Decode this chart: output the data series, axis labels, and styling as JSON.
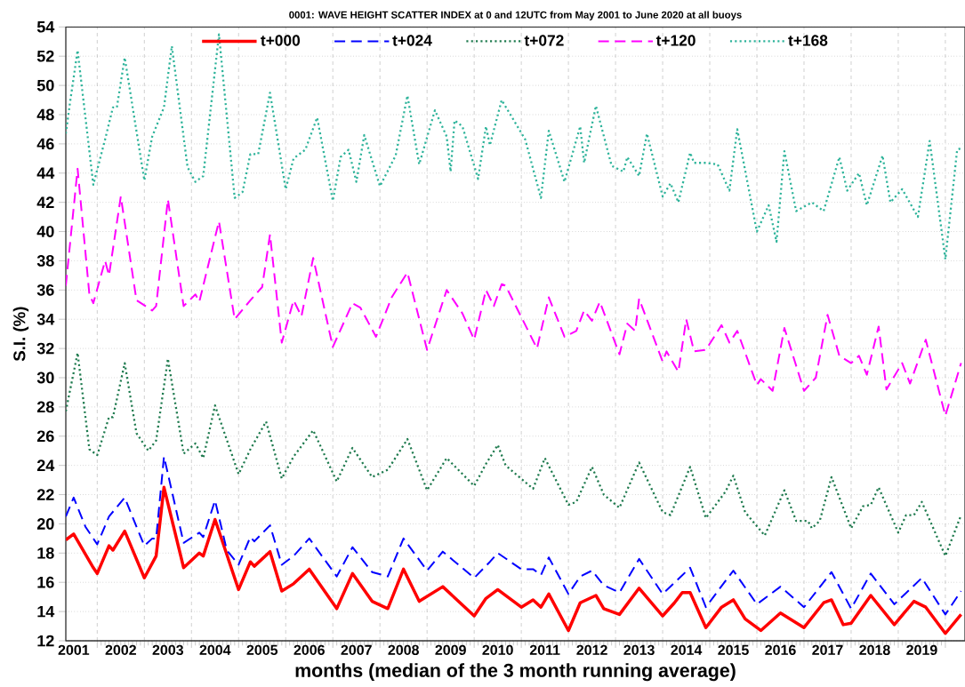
{
  "chart_data": {
    "type": "line",
    "title": "0001: WAVE HEIGHT SCATTER INDEX at 0 and 12UTC from May 2001 to June 2020 at all buoys",
    "xlabel": "months (median of the 3 month running average)",
    "ylabel": "S.I. (%)",
    "xlim": [
      "2001-05",
      "2020-06"
    ],
    "ylim": [
      12,
      54
    ],
    "yticks": [
      12,
      14,
      16,
      18,
      20,
      22,
      24,
      26,
      28,
      30,
      32,
      34,
      36,
      38,
      40,
      42,
      44,
      46,
      48,
      50,
      52,
      54
    ],
    "xticks": [
      {
        "value": "2001-07",
        "label": "2001"
      },
      {
        "value": "2002-07",
        "label": "2002"
      },
      {
        "value": "2003-07",
        "label": "2003"
      },
      {
        "value": "2004-07",
        "label": "2004"
      },
      {
        "value": "2005-07",
        "label": "2005"
      },
      {
        "value": "2006-07",
        "label": "2006"
      },
      {
        "value": "2007-07",
        "label": "2007"
      },
      {
        "value": "2008-07",
        "label": "2008"
      },
      {
        "value": "2009-07",
        "label": "2009"
      },
      {
        "value": "2010-07",
        "label": "2010"
      },
      {
        "value": "2011-07",
        "label": "2011"
      },
      {
        "value": "2012-07",
        "label": "2012"
      },
      {
        "value": "2013-07",
        "label": "2013"
      },
      {
        "value": "2014-07",
        "label": "2014"
      },
      {
        "value": "2015-07",
        "label": "2015"
      },
      {
        "value": "2016-07",
        "label": "2016"
      },
      {
        "value": "2017-07",
        "label": "2017"
      },
      {
        "value": "2018-07",
        "label": "2018"
      },
      {
        "value": "2019-07",
        "label": "2019"
      },
      {
        "value": "2002-01",
        "label": null
      },
      {
        "value": "2003-01",
        "label": null
      },
      {
        "value": "2004-01",
        "label": null
      },
      {
        "value": "2005-01",
        "label": null
      },
      {
        "value": "2006-01",
        "label": null
      },
      {
        "value": "2007-01",
        "label": null
      },
      {
        "value": "2008-01",
        "label": null
      },
      {
        "value": "2009-01",
        "label": null
      },
      {
        "value": "2010-01",
        "label": null
      },
      {
        "value": "2011-01",
        "label": null
      },
      {
        "value": "2012-01",
        "label": null
      },
      {
        "value": "2013-01",
        "label": null
      },
      {
        "value": "2014-01",
        "label": null
      },
      {
        "value": "2015-01",
        "label": null
      },
      {
        "value": "2016-01",
        "label": null
      },
      {
        "value": "2017-01",
        "label": null
      },
      {
        "value": "2018-01",
        "label": null
      },
      {
        "value": "2019-01",
        "label": null
      },
      {
        "value": "2020-01",
        "label": null
      }
    ],
    "grid": true,
    "legend": "top",
    "marker": "none",
    "series": [
      {
        "name": "t+000",
        "color": "#ff0000",
        "line_style": "solid",
        "x": [
          "2001-05",
          "2001-07",
          "2001-12",
          "2002-01",
          "2002-04",
          "2002-05",
          "2002-08",
          "2003-01",
          "2003-04",
          "2003-06",
          "2003-11",
          "2004-03",
          "2004-04",
          "2004-07",
          "2005-01",
          "2005-04",
          "2005-05",
          "2005-09",
          "2005-12",
          "2006-03",
          "2006-07",
          "2007-02",
          "2007-06",
          "2007-11",
          "2008-03",
          "2008-07",
          "2008-11",
          "2009-05",
          "2010-01",
          "2010-04",
          "2010-07",
          "2011-01",
          "2011-04",
          "2011-06",
          "2011-08",
          "2012-01",
          "2012-04",
          "2012-08",
          "2012-10",
          "2013-02",
          "2013-07",
          "2014-01",
          "2014-04",
          "2014-06",
          "2014-08",
          "2014-12",
          "2015-04",
          "2015-07",
          "2015-10",
          "2016-02",
          "2016-07",
          "2017-01",
          "2017-06",
          "2017-08",
          "2017-11",
          "2018-01",
          "2018-06",
          "2018-12",
          "2019-05",
          "2019-08",
          "2020-01",
          "2020-05"
        ],
        "values": [
          18.9,
          19.3,
          17.0,
          16.6,
          18.5,
          18.2,
          19.5,
          16.3,
          17.8,
          22.5,
          17.0,
          18.0,
          17.8,
          20.3,
          15.5,
          17.4,
          17.1,
          18.1,
          15.4,
          15.9,
          16.9,
          14.2,
          16.6,
          14.7,
          14.2,
          16.9,
          14.7,
          15.7,
          13.7,
          14.9,
          15.5,
          14.3,
          14.8,
          14.3,
          15.2,
          12.7,
          14.6,
          15.1,
          14.2,
          13.8,
          15.6,
          13.7,
          14.6,
          15.3,
          15.3,
          12.9,
          14.3,
          14.8,
          13.5,
          12.7,
          13.9,
          12.9,
          14.6,
          14.8,
          13.1,
          13.2,
          15.1,
          13.1,
          14.7,
          14.3,
          12.5,
          13.8
        ]
      },
      {
        "name": "t+024",
        "color": "#0000ff",
        "line_style": "dashed",
        "x": [
          "2001-05",
          "2001-07",
          "2001-10",
          "2002-01",
          "2002-04",
          "2002-08",
          "2002-11",
          "2003-01",
          "2003-03",
          "2003-04",
          "2003-06",
          "2003-11",
          "2004-03",
          "2004-04",
          "2004-07",
          "2004-10",
          "2005-01",
          "2005-04",
          "2005-05",
          "2005-09",
          "2005-12",
          "2006-03",
          "2006-07",
          "2007-02",
          "2007-06",
          "2007-11",
          "2008-03",
          "2008-07",
          "2009-01",
          "2009-05",
          "2010-01",
          "2010-05",
          "2010-07",
          "2011-01",
          "2011-04",
          "2011-06",
          "2011-08",
          "2012-01",
          "2012-04",
          "2012-07",
          "2012-10",
          "2013-02",
          "2013-07",
          "2014-01",
          "2014-08",
          "2014-12",
          "2015-05",
          "2015-07",
          "2016-01",
          "2016-07",
          "2017-01",
          "2017-08",
          "2018-01",
          "2018-06",
          "2018-12",
          "2019-07",
          "2020-01",
          "2020-05"
        ],
        "values": [
          20.5,
          21.8,
          19.8,
          18.6,
          20.5,
          21.8,
          19.8,
          18.5,
          19.0,
          19.0,
          24.6,
          18.7,
          19.4,
          19.1,
          21.6,
          18.2,
          17.2,
          19.1,
          18.8,
          19.9,
          17.2,
          17.8,
          19.0,
          16.4,
          18.4,
          16.7,
          16.4,
          19.0,
          16.8,
          18.1,
          16.3,
          17.4,
          18.0,
          16.9,
          16.9,
          16.5,
          17.7,
          15.2,
          16.4,
          16.8,
          15.8,
          15.3,
          17.6,
          15.2,
          17.0,
          14.3,
          16.1,
          16.8,
          14.5,
          15.7,
          14.3,
          16.7,
          14.2,
          16.6,
          14.5,
          16.3,
          13.8,
          15.4
        ]
      },
      {
        "name": "t+072",
        "color": "#1e7a4e",
        "line_style": "dotted",
        "x": [
          "2001-05",
          "2001-08",
          "2001-11",
          "2002-01",
          "2002-04",
          "2002-05",
          "2002-08",
          "2002-11",
          "2003-02",
          "2003-04",
          "2003-07",
          "2003-11",
          "2004-02",
          "2004-04",
          "2004-07",
          "2005-01",
          "2005-04",
          "2005-08",
          "2005-12",
          "2006-03",
          "2006-08",
          "2007-02",
          "2007-06",
          "2007-11",
          "2008-03",
          "2008-08",
          "2009-01",
          "2009-06",
          "2010-01",
          "2010-04",
          "2010-07",
          "2010-09",
          "2011-04",
          "2011-07",
          "2012-01",
          "2012-03",
          "2012-07",
          "2012-10",
          "2013-02",
          "2013-07",
          "2014-01",
          "2014-03",
          "2014-08",
          "2014-12",
          "2015-05",
          "2015-07",
          "2015-10",
          "2016-03",
          "2016-08",
          "2016-11",
          "2017-02",
          "2017-03",
          "2017-05",
          "2017-08",
          "2018-01",
          "2018-04",
          "2018-06",
          "2018-08",
          "2019-01",
          "2019-03",
          "2019-05",
          "2019-07",
          "2020-01",
          "2020-05"
        ],
        "values": [
          27.7,
          31.7,
          25.1,
          24.7,
          27.3,
          27.3,
          31.0,
          26.2,
          25.0,
          25.7,
          31.3,
          24.8,
          25.5,
          24.5,
          28.1,
          23.4,
          25.1,
          27.0,
          23.1,
          24.6,
          26.4,
          22.9,
          25.2,
          23.2,
          23.7,
          25.8,
          22.3,
          24.5,
          22.6,
          24.1,
          25.4,
          24.0,
          22.4,
          24.5,
          21.3,
          21.5,
          23.9,
          22.0,
          21.1,
          24.2,
          20.8,
          20.6,
          23.9,
          20.4,
          22.2,
          23.3,
          20.8,
          19.2,
          22.3,
          20.2,
          20.2,
          19.7,
          20.2,
          23.2,
          19.7,
          21.2,
          21.3,
          22.5,
          19.4,
          20.6,
          20.6,
          21.5,
          17.8,
          20.6
        ]
      },
      {
        "name": "t+120",
        "color": "#ff00ff",
        "line_style": "dashed",
        "x": [
          "2001-05",
          "2001-08",
          "2001-11",
          "2001-12",
          "2002-03",
          "2002-04",
          "2002-07",
          "2002-11",
          "2003-03",
          "2003-04",
          "2003-07",
          "2003-11",
          "2004-02",
          "2004-03",
          "2004-08",
          "2004-12",
          "2005-04",
          "2005-07",
          "2005-09",
          "2005-12",
          "2006-03",
          "2006-05",
          "2006-08",
          "2007-01",
          "2007-06",
          "2007-08",
          "2007-12",
          "2008-04",
          "2008-08",
          "2009-01",
          "2009-06",
          "2009-10",
          "2010-01",
          "2010-04",
          "2010-06",
          "2010-08",
          "2010-09",
          "2011-05",
          "2011-08",
          "2011-12",
          "2012-03",
          "2012-05",
          "2012-07",
          "2012-09",
          "2013-02",
          "2013-04",
          "2013-06",
          "2013-07",
          "2014-01",
          "2014-02",
          "2014-05",
          "2014-07",
          "2014-09",
          "2014-12",
          "2015-04",
          "2015-06",
          "2015-08",
          "2016-01",
          "2016-02",
          "2016-05",
          "2016-08",
          "2017-01",
          "2017-04",
          "2017-07",
          "2017-10",
          "2018-01",
          "2018-03",
          "2018-05",
          "2018-08",
          "2018-10",
          "2019-02",
          "2019-04",
          "2019-08",
          "2020-01",
          "2020-05"
        ],
        "values": [
          36.3,
          44.3,
          35.7,
          35.1,
          38.0,
          37.0,
          42.4,
          35.3,
          34.6,
          34.9,
          42.2,
          34.9,
          35.7,
          35.2,
          40.7,
          34.0,
          35.3,
          36.2,
          39.8,
          32.4,
          35.3,
          34.2,
          38.2,
          32.1,
          35.1,
          34.8,
          32.8,
          35.5,
          37.2,
          31.9,
          36.0,
          34.4,
          32.6,
          36.0,
          34.9,
          36.4,
          36.3,
          32.0,
          35.5,
          32.8,
          33.2,
          34.6,
          33.9,
          35.2,
          31.6,
          33.7,
          33.2,
          35.4,
          31.1,
          31.8,
          30.4,
          34.0,
          31.8,
          31.9,
          33.6,
          32.4,
          33.2,
          29.5,
          29.9,
          29.1,
          33.4,
          29.1,
          30.0,
          34.3,
          31.5,
          31.0,
          31.5,
          30.2,
          33.5,
          29.2,
          31.0,
          29.6,
          32.6,
          27.4,
          31.0
        ]
      },
      {
        "name": "t+168",
        "color": "#2db39a",
        "line_style": "dotted",
        "x": [
          "2001-05",
          "2001-06",
          "2001-08",
          "2001-12",
          "2002-03",
          "2002-05",
          "2002-06",
          "2002-08",
          "2003-01",
          "2003-03",
          "2003-06",
          "2003-08",
          "2003-12",
          "2004-02",
          "2004-04",
          "2004-08",
          "2004-12",
          "2005-02",
          "2005-04",
          "2005-06",
          "2005-09",
          "2006-01",
          "2006-03",
          "2006-06",
          "2006-09",
          "2007-01",
          "2007-03",
          "2007-05",
          "2007-07",
          "2007-09",
          "2008-01",
          "2008-05",
          "2008-08",
          "2008-11",
          "2009-03",
          "2009-06",
          "2009-07",
          "2009-08",
          "2009-10",
          "2010-02",
          "2010-04",
          "2010-05",
          "2010-08",
          "2011-02",
          "2011-06",
          "2011-08",
          "2011-12",
          "2012-04",
          "2012-05",
          "2012-08",
          "2012-12",
          "2013-03",
          "2013-04",
          "2013-07",
          "2013-09",
          "2014-01",
          "2014-03",
          "2014-05",
          "2014-08",
          "2014-09",
          "2014-12",
          "2015-03",
          "2015-06",
          "2015-08",
          "2016-01",
          "2016-04",
          "2016-06",
          "2016-08",
          "2016-11",
          "2017-03",
          "2017-06",
          "2017-10",
          "2017-12",
          "2018-03",
          "2018-05",
          "2018-09",
          "2018-11",
          "2019-02",
          "2019-06",
          "2019-09",
          "2020-01",
          "2020-04",
          "2020-05"
        ],
        "values": [
          46.7,
          48.7,
          52.4,
          43.2,
          46.3,
          48.5,
          48.5,
          51.9,
          43.5,
          46.5,
          48.5,
          52.7,
          44.4,
          43.4,
          43.8,
          53.5,
          42.3,
          42.7,
          45.3,
          45.3,
          49.5,
          42.9,
          45.0,
          45.6,
          47.8,
          42.1,
          45.1,
          45.6,
          43.4,
          46.6,
          43.1,
          45.2,
          49.3,
          44.6,
          48.3,
          46.5,
          44.1,
          47.6,
          47.2,
          43.6,
          47.2,
          45.9,
          49.0,
          46.3,
          42.3,
          46.9,
          43.4,
          47.2,
          44.7,
          48.6,
          44.5,
          44.1,
          45.1,
          43.8,
          46.7,
          42.4,
          43.3,
          42.0,
          45.4,
          44.7,
          44.7,
          44.6,
          42.8,
          47.0,
          40.0,
          41.8,
          39.3,
          45.5,
          41.4,
          42.0,
          41.4,
          45.1,
          42.8,
          44.0,
          41.8,
          45.2,
          42.0,
          42.9,
          41.0,
          46.2,
          38.1,
          45.6,
          45.7
        ]
      }
    ]
  }
}
